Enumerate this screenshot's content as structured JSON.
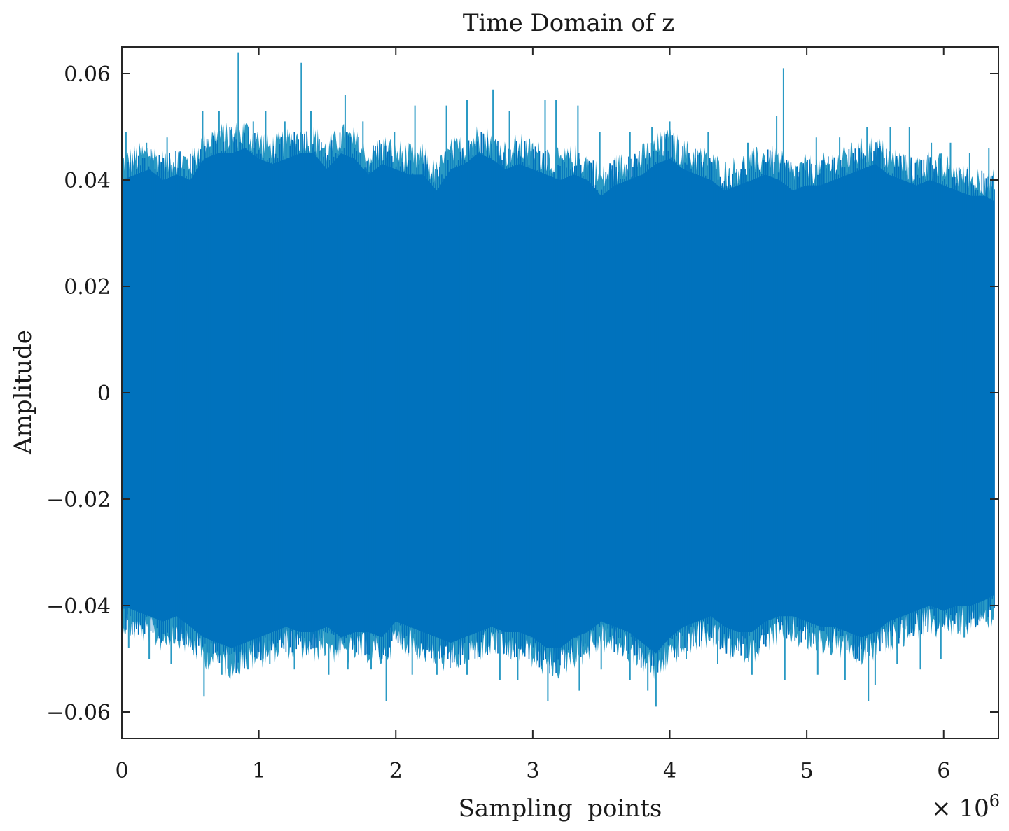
{
  "chart_data": {
    "type": "line",
    "title": "Time Domain of z",
    "xlabel": "Sampling  points",
    "ylabel": "Amplitude",
    "x_exponent_label": "× 10",
    "x_exponent_power": "6",
    "x_multiplier": 1000000,
    "xlim": [
      0,
      6.4
    ],
    "ylim": [
      -0.065,
      0.065
    ],
    "x_ticks": [
      0,
      1,
      2,
      3,
      4,
      5,
      6
    ],
    "x_tick_labels": [
      "0",
      "1",
      "2",
      "3",
      "4",
      "5",
      "6"
    ],
    "y_ticks": [
      0.06,
      0.04,
      0.02,
      0,
      -0.02,
      -0.04,
      -0.06
    ],
    "y_tick_labels": [
      "0.06",
      "0.04",
      "0.02",
      "0",
      "−0.02",
      "−0.04",
      "−0.06"
    ],
    "grid": false,
    "series_color": "#0072bd",
    "series_edge_color": "#2a9ac4",
    "envelope": {
      "description_units": "x in millions of sampling points, amplitude in signal units",
      "x": [
        0.0,
        0.1,
        0.2,
        0.3,
        0.4,
        0.5,
        0.6,
        0.7,
        0.8,
        0.9,
        1.0,
        1.1,
        1.2,
        1.3,
        1.4,
        1.5,
        1.6,
        1.7,
        1.8,
        1.9,
        2.0,
        2.1,
        2.2,
        2.3,
        2.4,
        2.5,
        2.6,
        2.7,
        2.8,
        2.9,
        3.0,
        3.1,
        3.2,
        3.3,
        3.4,
        3.5,
        3.6,
        3.7,
        3.8,
        3.9,
        4.0,
        4.1,
        4.2,
        4.3,
        4.4,
        4.5,
        4.6,
        4.7,
        4.8,
        4.9,
        5.0,
        5.1,
        5.2,
        5.3,
        5.4,
        5.5,
        5.6,
        5.7,
        5.8,
        5.9,
        6.0,
        6.1,
        6.2,
        6.3,
        6.37
      ],
      "upper": [
        0.04,
        0.041,
        0.042,
        0.04,
        0.041,
        0.04,
        0.044,
        0.045,
        0.045,
        0.046,
        0.044,
        0.043,
        0.044,
        0.045,
        0.045,
        0.042,
        0.045,
        0.044,
        0.041,
        0.043,
        0.042,
        0.041,
        0.041,
        0.038,
        0.042,
        0.043,
        0.045,
        0.044,
        0.042,
        0.043,
        0.042,
        0.041,
        0.04,
        0.041,
        0.04,
        0.037,
        0.039,
        0.04,
        0.041,
        0.043,
        0.044,
        0.042,
        0.041,
        0.04,
        0.038,
        0.039,
        0.04,
        0.041,
        0.04,
        0.038,
        0.039,
        0.039,
        0.04,
        0.041,
        0.042,
        0.043,
        0.041,
        0.04,
        0.039,
        0.04,
        0.039,
        0.038,
        0.037,
        0.037,
        0.036
      ],
      "lower": [
        -0.04,
        -0.041,
        -0.042,
        -0.043,
        -0.042,
        -0.044,
        -0.046,
        -0.047,
        -0.048,
        -0.047,
        -0.046,
        -0.045,
        -0.044,
        -0.045,
        -0.045,
        -0.044,
        -0.046,
        -0.045,
        -0.045,
        -0.046,
        -0.043,
        -0.044,
        -0.045,
        -0.046,
        -0.047,
        -0.046,
        -0.045,
        -0.044,
        -0.045,
        -0.045,
        -0.046,
        -0.048,
        -0.048,
        -0.046,
        -0.045,
        -0.043,
        -0.044,
        -0.045,
        -0.047,
        -0.049,
        -0.046,
        -0.044,
        -0.043,
        -0.042,
        -0.044,
        -0.045,
        -0.045,
        -0.043,
        -0.042,
        -0.042,
        -0.043,
        -0.044,
        -0.044,
        -0.045,
        -0.046,
        -0.045,
        -0.043,
        -0.042,
        -0.041,
        -0.04,
        -0.041,
        -0.04,
        -0.04,
        -0.039,
        -0.038
      ],
      "spike_peaks": [
        {
          "x": 0.03,
          "y": 0.049
        },
        {
          "x": 0.18,
          "y": 0.047
        },
        {
          "x": 0.33,
          "y": 0.048
        },
        {
          "x": 0.59,
          "y": 0.053
        },
        {
          "x": 0.71,
          "y": 0.053
        },
        {
          "x": 0.85,
          "y": 0.064
        },
        {
          "x": 0.96,
          "y": 0.051
        },
        {
          "x": 1.05,
          "y": 0.053
        },
        {
          "x": 1.19,
          "y": 0.051
        },
        {
          "x": 1.31,
          "y": 0.062
        },
        {
          "x": 1.38,
          "y": 0.053
        },
        {
          "x": 1.63,
          "y": 0.056
        },
        {
          "x": 1.76,
          "y": 0.051
        },
        {
          "x": 1.99,
          "y": 0.049
        },
        {
          "x": 2.14,
          "y": 0.054
        },
        {
          "x": 2.37,
          "y": 0.054
        },
        {
          "x": 2.52,
          "y": 0.055
        },
        {
          "x": 2.71,
          "y": 0.057
        },
        {
          "x": 2.83,
          "y": 0.053
        },
        {
          "x": 3.09,
          "y": 0.055
        },
        {
          "x": 3.17,
          "y": 0.055
        },
        {
          "x": 3.33,
          "y": 0.054
        },
        {
          "x": 3.49,
          "y": 0.049
        },
        {
          "x": 3.71,
          "y": 0.049
        },
        {
          "x": 3.87,
          "y": 0.05
        },
        {
          "x": 4.0,
          "y": 0.051
        },
        {
          "x": 4.28,
          "y": 0.049
        },
        {
          "x": 4.57,
          "y": 0.047
        },
        {
          "x": 4.78,
          "y": 0.052
        },
        {
          "x": 4.83,
          "y": 0.061
        },
        {
          "x": 5.07,
          "y": 0.048
        },
        {
          "x": 5.24,
          "y": 0.048
        },
        {
          "x": 5.44,
          "y": 0.05
        },
        {
          "x": 5.61,
          "y": 0.05
        },
        {
          "x": 5.75,
          "y": 0.05
        },
        {
          "x": 5.91,
          "y": 0.047
        },
        {
          "x": 6.05,
          "y": 0.047
        },
        {
          "x": 6.19,
          "y": 0.045
        },
        {
          "x": 6.33,
          "y": 0.046
        },
        {
          "x": 0.05,
          "y": -0.048
        },
        {
          "x": 0.2,
          "y": -0.05
        },
        {
          "x": 0.36,
          "y": -0.051
        },
        {
          "x": 0.6,
          "y": -0.057
        },
        {
          "x": 0.73,
          "y": -0.053
        },
        {
          "x": 0.92,
          "y": -0.052
        },
        {
          "x": 1.08,
          "y": -0.051
        },
        {
          "x": 1.26,
          "y": -0.052
        },
        {
          "x": 1.51,
          "y": -0.053
        },
        {
          "x": 1.65,
          "y": -0.052
        },
        {
          "x": 1.82,
          "y": -0.052
        },
        {
          "x": 1.93,
          "y": -0.058
        },
        {
          "x": 2.12,
          "y": -0.053
        },
        {
          "x": 2.3,
          "y": -0.053
        },
        {
          "x": 2.52,
          "y": -0.053
        },
        {
          "x": 2.76,
          "y": -0.054
        },
        {
          "x": 2.89,
          "y": -0.054
        },
        {
          "x": 3.11,
          "y": -0.058
        },
        {
          "x": 3.34,
          "y": -0.056
        },
        {
          "x": 3.5,
          "y": -0.052
        },
        {
          "x": 3.71,
          "y": -0.054
        },
        {
          "x": 3.84,
          "y": -0.056
        },
        {
          "x": 3.9,
          "y": -0.059
        },
        {
          "x": 4.12,
          "y": -0.05
        },
        {
          "x": 4.35,
          "y": -0.051
        },
        {
          "x": 4.6,
          "y": -0.053
        },
        {
          "x": 4.84,
          "y": -0.054
        },
        {
          "x": 5.08,
          "y": -0.053
        },
        {
          "x": 5.28,
          "y": -0.054
        },
        {
          "x": 5.45,
          "y": -0.058
        },
        {
          "x": 5.5,
          "y": -0.055
        },
        {
          "x": 5.66,
          "y": -0.051
        },
        {
          "x": 5.83,
          "y": -0.052
        },
        {
          "x": 5.98,
          "y": -0.05
        },
        {
          "x": 6.15,
          "y": -0.046
        },
        {
          "x": 6.31,
          "y": -0.043
        }
      ]
    }
  }
}
